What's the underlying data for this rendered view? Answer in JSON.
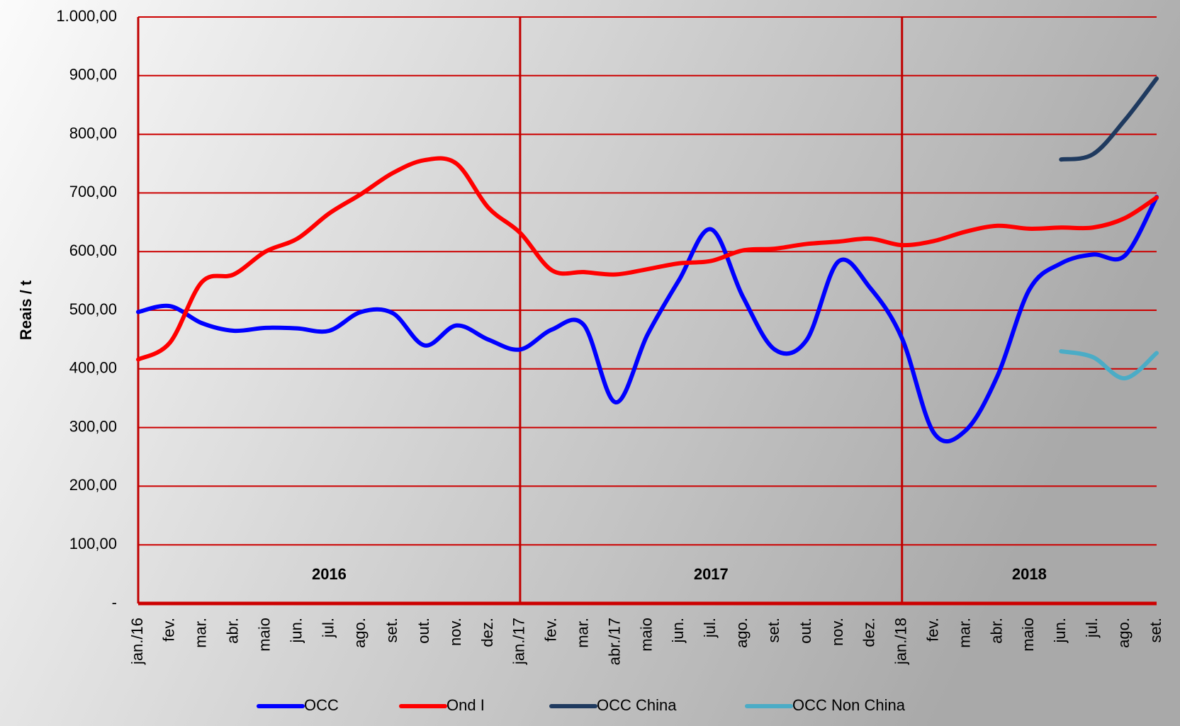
{
  "chart_data": {
    "type": "line",
    "y_label": "Reais / t",
    "categories": [
      "jan./16",
      "fev.",
      "mar.",
      "abr.",
      "maio",
      "jun.",
      "jul.",
      "ago.",
      "set.",
      "out.",
      "nov.",
      "dez.",
      "jan./17",
      "fev.",
      "mar.",
      "abr./17",
      "maio",
      "jun.",
      "jul.",
      "ago.",
      "set.",
      "out.",
      "nov.",
      "dez.",
      "jan./18",
      "fev.",
      "mar.",
      "abr.",
      "maio",
      "jun.",
      "jul.",
      "ago.",
      "set."
    ],
    "series": [
      {
        "name": "OCC",
        "color": "#0000ff",
        "values": [
          497,
          507,
          478,
          465,
          470,
          469,
          465,
          497,
          495,
          440,
          474,
          450,
          433,
          467,
          475,
          343,
          458,
          552,
          638,
          523,
          433,
          449,
          583,
          538,
          452,
          291,
          295,
          388,
          535,
          580,
          595,
          593,
          693
        ]
      },
      {
        "name": "Ond I",
        "color": "#ff0000",
        "values": [
          416,
          445,
          548,
          561,
          600,
          622,
          665,
          698,
          734,
          756,
          750,
          675,
          632,
          568,
          565,
          561,
          570,
          580,
          584,
          602,
          605,
          613,
          617,
          622,
          611,
          618,
          634,
          644,
          639,
          641,
          641,
          657,
          692
        ]
      },
      {
        "name": "OCC China",
        "color": "#1f3a5f",
        "values": [
          null,
          null,
          null,
          null,
          null,
          null,
          null,
          null,
          null,
          null,
          null,
          null,
          null,
          null,
          null,
          null,
          null,
          null,
          null,
          null,
          null,
          null,
          null,
          null,
          null,
          null,
          null,
          null,
          null,
          757,
          766,
          824,
          895
        ]
      },
      {
        "name": "OCC Non China",
        "color": "#4bacc6",
        "values": [
          null,
          null,
          null,
          null,
          null,
          null,
          null,
          null,
          null,
          null,
          null,
          null,
          null,
          null,
          null,
          null,
          null,
          null,
          null,
          null,
          null,
          null,
          null,
          null,
          null,
          null,
          null,
          null,
          null,
          430,
          420,
          384,
          427
        ]
      }
    ],
    "annotations": [
      "2016",
      "2017",
      "2018"
    ],
    "ylim": [
      0,
      1000
    ],
    "yticks": [
      {
        "value": 0,
        "label": "-"
      },
      {
        "value": 100,
        "label": "100,00"
      },
      {
        "value": 200,
        "label": "200,00"
      },
      {
        "value": 300,
        "label": "300,00"
      },
      {
        "value": 400,
        "label": "400,00"
      },
      {
        "value": 500,
        "label": "500,00"
      },
      {
        "value": 600,
        "label": "600,00"
      },
      {
        "value": 700,
        "label": "700,00"
      },
      {
        "value": 800,
        "label": "800,00"
      },
      {
        "value": 900,
        "label": "900,00"
      },
      {
        "value": 1000,
        "label": "1.000,00"
      }
    ],
    "grid": true,
    "grid_color": "#cc0000",
    "legend": "bottom"
  }
}
